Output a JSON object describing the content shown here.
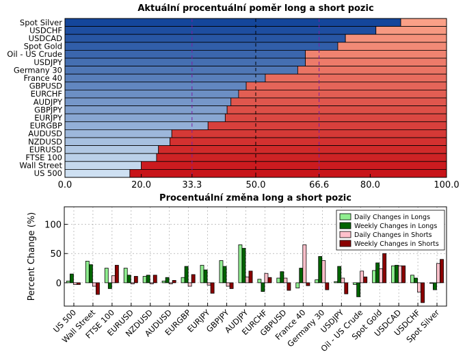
{
  "chart_data": [
    {
      "type": "bar",
      "orientation": "horizontal",
      "stacked": true,
      "title": "Aktuální procentuální poměr long a short pozic",
      "categories": [
        "Spot Silver",
        "USDCHF",
        "USDCAD",
        "Spot Gold",
        "Oil - US Crude",
        "USDJPY",
        "Germany 30",
        "France 40",
        "GBPUSD",
        "EURCHF",
        "AUDJPY",
        "GBPJPY",
        "EURJPY",
        "EURGBP",
        "AUDUSD",
        "NZDUSD",
        "EURUSD",
        "FTSE 100",
        "Wall Street",
        "US 500"
      ],
      "series": [
        {
          "values": [
            88,
            81.5,
            73.5,
            71.5,
            63,
            63,
            61,
            52.5,
            47.5,
            45.5,
            43.5,
            42.5,
            42,
            37.5,
            28,
            27.5,
            24.5,
            24,
            20,
            17
          ]
        },
        {
          "values": [
            12,
            18.5,
            26.5,
            28.5,
            37,
            37,
            39,
            47.5,
            52.5,
            54.5,
            56.5,
            57.5,
            58,
            62.5,
            72,
            72.5,
            75.5,
            76,
            80,
            83
          ]
        }
      ],
      "xlim": [
        0,
        100
      ],
      "xticks": [
        "0.0",
        "20.0",
        "33.3",
        "50.0",
        "66.6",
        "80.0",
        "100.0"
      ],
      "reference_lines": [
        33.3,
        50.0,
        66.6
      ],
      "grid": true
    },
    {
      "type": "bar",
      "title": "Procentuální změna long a short pozic",
      "ylabel": "Percent Change (%)",
      "ylim": [
        -40,
        130
      ],
      "yticks": [
        "0",
        "50",
        "100"
      ],
      "categories": [
        "US 500",
        "Wall Street",
        "FTSE 100",
        "EURUSD",
        "NZDUSD",
        "AUDUSD",
        "EURGBP",
        "EURJPY",
        "GBPJPY",
        "AUDJPY",
        "EURCHF",
        "GBPUSD",
        "France 40",
        "Germany 30",
        "USDJPY",
        "Oil - US Crude",
        "Spot Gold",
        "USDCAD",
        "USDCHF",
        "Spot Silver"
      ],
      "series": [
        {
          "name": "Daily Changes in Longs",
          "color": "#90ee90",
          "values": [
            3,
            37,
            25,
            25,
            11,
            3,
            9,
            30,
            38,
            65,
            6,
            8,
            -9,
            5,
            2,
            -3,
            21,
            29,
            13,
            -1
          ]
        },
        {
          "name": "Weekly Changes in Longs",
          "color": "#006400",
          "values": [
            15,
            31,
            -10,
            13,
            13,
            9,
            28,
            22,
            28,
            59,
            -15,
            19,
            25,
            45,
            28,
            -24,
            34,
            30,
            8,
            -12
          ]
        },
        {
          "name": "Daily Changes in Shorts",
          "color": "#ffc0cb",
          "values": [
            -3,
            -6,
            12,
            -2,
            -2,
            -2,
            -6,
            -4,
            -6,
            10,
            16,
            8,
            65,
            38,
            8,
            20,
            24,
            29,
            -16,
            33
          ]
        },
        {
          "name": "Weekly Changes in Shorts",
          "color": "#8b0000",
          "values": [
            -3,
            -20,
            30,
            11,
            13,
            4,
            14,
            -18,
            -10,
            20,
            9,
            -13,
            -5,
            -12,
            -19,
            10,
            50,
            29,
            -34,
            40
          ]
        }
      ],
      "legend": "top-right",
      "grid": true
    }
  ]
}
